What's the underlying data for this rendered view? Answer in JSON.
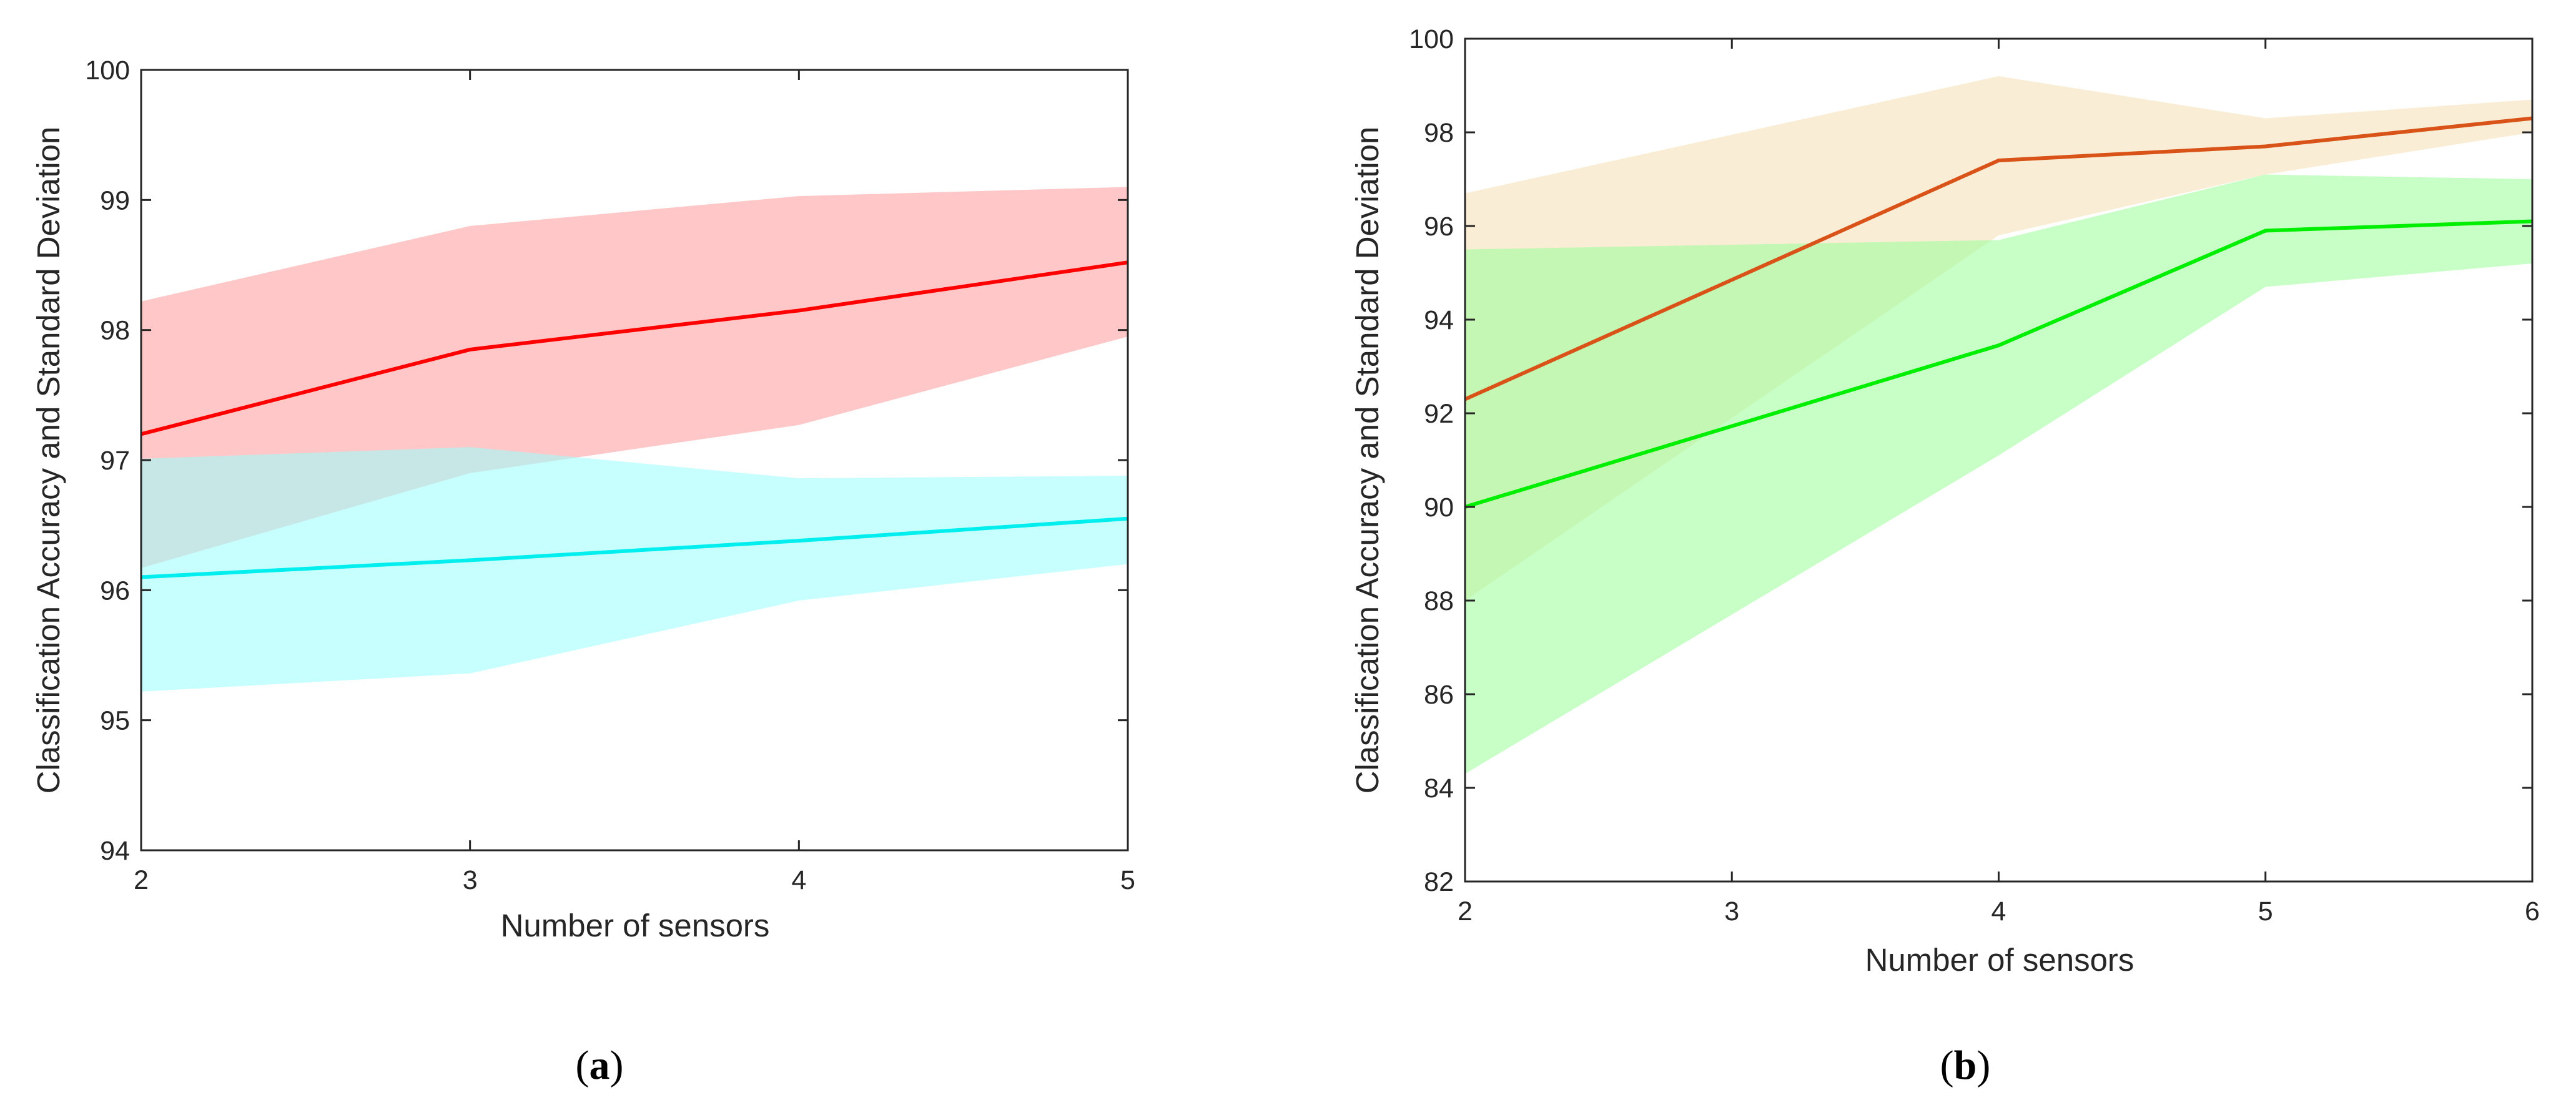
{
  "colors": {
    "axis": "#262626",
    "background": "#ffffff"
  },
  "chart_data": [
    {
      "type": "line",
      "panel_label": "a",
      "xlabel": "Number of sensors",
      "ylabel": "Classification Accuracy and Standard Deviation",
      "xlim": [
        2,
        5
      ],
      "ylim": [
        94,
        100
      ],
      "xticks": [
        "2",
        "3",
        "4",
        "5"
      ],
      "yticks": [
        "94",
        "95",
        "96",
        "97",
        "98",
        "99",
        "100"
      ],
      "x": [
        2,
        3,
        4,
        5
      ],
      "series": [
        {
          "name": "series-red",
          "color": "#ff0000",
          "band_color": "#ff9999",
          "values": [
            97.2,
            97.85,
            98.15,
            98.52
          ],
          "band_upper": [
            98.22,
            98.8,
            99.03,
            99.1
          ],
          "band_lower": [
            96.17,
            96.9,
            97.27,
            97.95
          ]
        },
        {
          "name": "series-cyan",
          "color": "#00eeee",
          "band_color": "#99ffff",
          "values": [
            96.1,
            96.23,
            96.38,
            96.55
          ],
          "band_upper": [
            97.01,
            97.1,
            96.86,
            96.88
          ],
          "band_lower": [
            95.22,
            95.36,
            95.92,
            96.2
          ]
        }
      ]
    },
    {
      "type": "line",
      "panel_label": "b",
      "xlabel": "Number of sensors",
      "ylabel": "Classification Accuracy and Standard Deviation",
      "xlim": [
        2,
        6
      ],
      "ylim": [
        82,
        100
      ],
      "xticks": [
        "2",
        "3",
        "4",
        "5",
        "6"
      ],
      "yticks": [
        "82",
        "84",
        "86",
        "88",
        "90",
        "92",
        "94",
        "96",
        "98",
        "100"
      ],
      "x": [
        2,
        4,
        5,
        6
      ],
      "series": [
        {
          "name": "series-orange",
          "color": "#d95319",
          "band_color": "#f5deb3",
          "values": [
            92.3,
            97.4,
            97.7,
            98.3
          ],
          "band_upper": [
            96.7,
            99.2,
            98.3,
            98.7
          ],
          "band_lower": [
            88.0,
            95.8,
            97.1,
            98.0
          ]
        },
        {
          "name": "series-green",
          "color": "#00ee00",
          "band_color": "#99ff99",
          "values": [
            90.0,
            93.45,
            95.9,
            96.1
          ],
          "band_upper": [
            95.5,
            95.7,
            97.1,
            97.0
          ],
          "band_lower": [
            84.3,
            91.1,
            94.7,
            95.2
          ]
        }
      ]
    }
  ]
}
